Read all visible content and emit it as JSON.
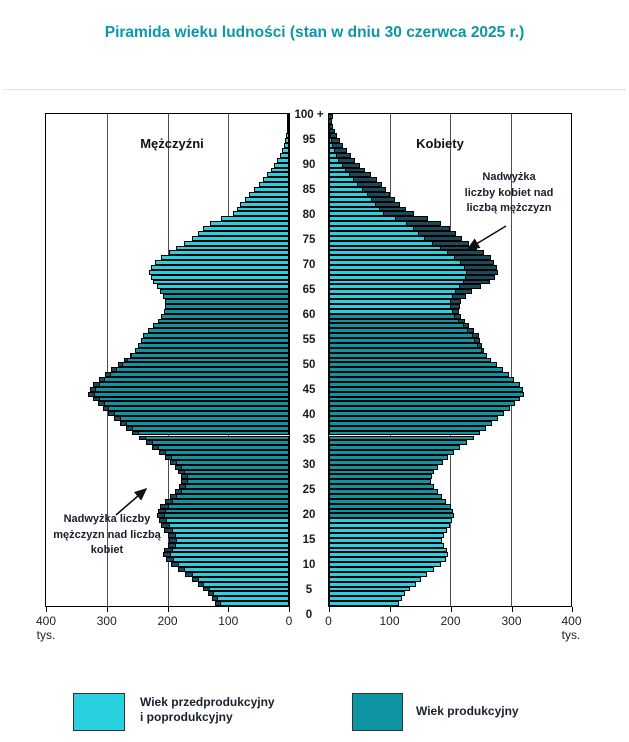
{
  "title": "Piramida wieku ludności (stan w dniu 30 czerwca 2025 r.)",
  "panel_labels": {
    "male": "Mężczyźni",
    "female": "Kobiety"
  },
  "annotations": {
    "female_surplus": {
      "line1": "Nadwyżka",
      "line2": "liczby kobiet nad",
      "line3": "liczbą mężczyzn"
    },
    "male_surplus": {
      "line1": "Nadwyżka liczby",
      "line2": "mężczyzn nad liczbą",
      "line3": "kobiet"
    }
  },
  "axis": {
    "left_tick_labels": [
      "400",
      "300",
      "200",
      "100",
      "0"
    ],
    "right_tick_labels": [
      "0",
      "100",
      "200",
      "300",
      "400"
    ],
    "unit_left": "tys.",
    "unit_right": "tys.",
    "age_tick_labels": [
      "0",
      "5",
      "10",
      "15",
      "20",
      "25",
      "30",
      "35",
      "40",
      "45",
      "50",
      "55",
      "60",
      "65",
      "70",
      "75",
      "80",
      "85",
      "90",
      "95",
      "100 +"
    ]
  },
  "legend": {
    "prepost": {
      "line1": "Wiek przedprodukcyjny",
      "line2": "i poprodukcyjny"
    },
    "working": {
      "line1": "Wiek produkcyjny"
    }
  },
  "colors": {
    "pre_post_working": "#28d0e0",
    "working": "#0d95a3",
    "surplus": "#1a4a57",
    "title": "#0d96aa",
    "bar_border": "#000000",
    "gridline": "#4d4d4d"
  },
  "chart_data": {
    "type": "bar",
    "subtype": "population_pyramid",
    "title": "Piramida wieku ludności (stan w dniu 30 czerwca 2025 r.)",
    "unit": "tys. (thousands of persons per single year of age)",
    "x_axis_max": 400,
    "x_gridlines": [
      100,
      200,
      300
    ],
    "age_min": 0,
    "age_max": 100,
    "top_bar_label": "100 +",
    "working_age": {
      "male": [
        18,
        64
      ],
      "female": [
        18,
        59
      ]
    },
    "legend_entries": [
      "Wiek przedprodukcyjny i poprodukcyjny",
      "Wiek produkcyjny"
    ],
    "surplus_note": "Darker bar tips mark the surplus of one sex over the other at a given age",
    "series": [
      {
        "name": "Mężczyźni",
        "side": "left",
        "values_by_age_thousands": [
          122,
          127,
          133,
          141,
          150,
          160,
          171,
          183,
          195,
          203,
          208,
          205,
          200,
          197,
          200,
          205,
          210,
          214,
          218,
          216,
          212,
          204,
          196,
          188,
          181,
          177,
          178,
          182,
          188,
          196,
          204,
          214,
          225,
          236,
          247,
          258,
          268,
          278,
          288,
          298,
          307,
          315,
          323,
          331,
          328,
          322,
          313,
          303,
          293,
          282,
          271,
          262,
          254,
          248,
          243,
          240,
          232,
          224,
          216,
          210,
          206,
          204,
          204,
          207,
          212,
          218,
          224,
          228,
          230,
          227,
          220,
          210,
          198,
          186,
          173,
          160,
          150,
          142,
          130,
          112,
          93,
          86,
          80,
          73,
          66,
          58,
          50,
          43,
          36,
          30,
          24,
          19,
          15,
          12,
          9,
          7,
          5,
          4,
          3,
          2,
          2
        ]
      },
      {
        "name": "Kobiety",
        "side": "right",
        "values_by_age_thousands": [
          115,
          120,
          126,
          134,
          143,
          152,
          162,
          174,
          185,
          193,
          197,
          195,
          190,
          187,
          190,
          195,
          200,
          204,
          207,
          205,
          201,
          194,
          187,
          180,
          173,
          169,
          170,
          174,
          180,
          188,
          196,
          206,
          217,
          228,
          239,
          250,
          260,
          270,
          280,
          290,
          299,
          307,
          315,
          323,
          321,
          315,
          306,
          297,
          287,
          277,
          268,
          261,
          256,
          253,
          250,
          248,
          240,
          232,
          224,
          218,
          215,
          216,
          219,
          226,
          237,
          252,
          266,
          274,
          280,
          278,
          272,
          268,
          257,
          245,
          232,
          220,
          210,
          200,
          185,
          163,
          140,
          128,
          118,
          109,
          101,
          95,
          88,
          80,
          70,
          60,
          51,
          43,
          36,
          29,
          23,
          18,
          14,
          10,
          7,
          5,
          6
        ]
      }
    ]
  }
}
